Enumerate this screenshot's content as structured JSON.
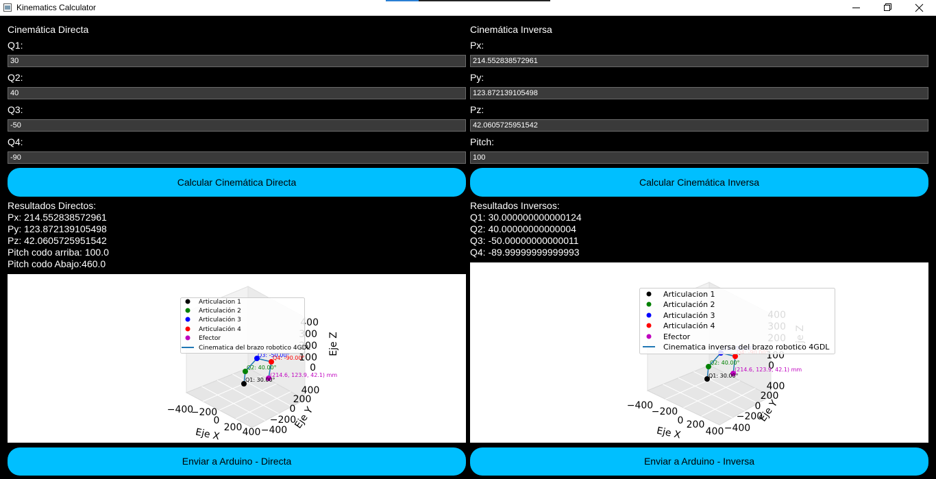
{
  "window": {
    "title": "Kinematics Calculator"
  },
  "direct": {
    "heading": "Cinemática Directa",
    "fields": [
      {
        "label": "Q1:",
        "value": "30"
      },
      {
        "label": "Q2:",
        "value": "40"
      },
      {
        "label": "Q3:",
        "value": "-50"
      },
      {
        "label": "Q4:",
        "value": "-90"
      }
    ],
    "button": "Calcular Cinemática Directa",
    "results": [
      "Resultados Directos:",
      "Px: 214.552838572961",
      "Py: 123.872139105498",
      "Pz: 42.0605725951542",
      "Pitch codo arriba: 100.0",
      "Pitch codo Abajo:460.0"
    ],
    "plot": {
      "legend": [
        "Articulacion 1",
        "Articulación 2",
        "Articulación 3",
        "Articulación 4",
        "Efector",
        "Cinematica del brazo robotico 4GDL"
      ],
      "annotations": [
        "Q1: 30.00°",
        "Q2: 40.00°",
        "Q3: -50.00°",
        "Q4: -90.00°",
        "(214.6, 123.9, 42.1) mm"
      ],
      "x_label": "Eje X",
      "y_label": "Eje Y",
      "z_label": "Eje Z",
      "x_ticks": [
        "−400",
        "−200",
        "0",
        "200",
        "400"
      ],
      "y_ticks": [
        "−400",
        "−200",
        "0",
        "200",
        "400"
      ],
      "z_ticks": [
        "0",
        "100",
        "200",
        "300",
        "400"
      ]
    },
    "send_button": "Enviar a Arduino - Directa"
  },
  "inverse": {
    "heading": "Cinemática Inversa",
    "fields": [
      {
        "label": "Px:",
        "value": "214.552838572961"
      },
      {
        "label": "Py:",
        "value": "123.872139105498"
      },
      {
        "label": "Pz:",
        "value": "42.0605725951542"
      },
      {
        "label": "Pitch:",
        "value": "100"
      }
    ],
    "button": "Calcular Cinemática Inversa",
    "results": [
      "Resultados Inversos:",
      "Q1: 30.000000000000124",
      "Q2: 40.00000000000004",
      "Q3: -50.00000000000011",
      "Q4: -89.99999999999993"
    ],
    "plot": {
      "legend": [
        "Articulacion 1",
        "Articulación 2",
        "Articulación 3",
        "Articulación 4",
        "Efector",
        "Cinematica inversa del brazo robotico 4GDL"
      ],
      "annotations": [
        "Q1: 30.00°",
        "Q2: 40.00°",
        "Q3: -50.00°",
        "Q4: -90.00°",
        "(214.6, 123.9, 42.1) mm"
      ],
      "x_label": "Eje X",
      "y_label": "Eje Y",
      "z_label": "Eje Z",
      "x_ticks": [
        "−400",
        "−200",
        "0",
        "200",
        "400"
      ],
      "y_ticks": [
        "−400",
        "−200",
        "0",
        "200",
        "400"
      ],
      "z_ticks": [
        "0",
        "100",
        "200",
        "300",
        "400"
      ]
    },
    "send_button": "Enviar a Arduino - Inversa"
  }
}
